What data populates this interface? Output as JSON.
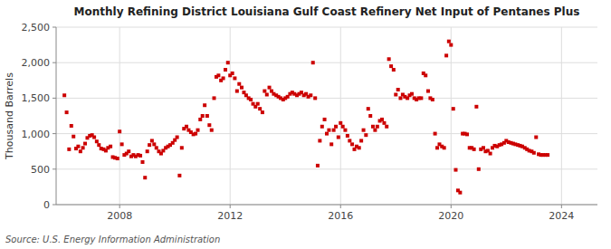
{
  "chart_data": {
    "type": "scatter",
    "title": "Monthly Refining District Louisiana Gulf Coast Refinery Net Input of Pentanes Plus",
    "ylabel": "Thousand Barrels",
    "source": "Source: U.S. Energy Information Administration",
    "color": "#cc0000",
    "marker": "square",
    "grid": true,
    "xlim": [
      2005.7,
      2025.3
    ],
    "xticks": [
      2008,
      2012,
      2016,
      2020,
      2024
    ],
    "ylim": [
      0,
      2500
    ],
    "yticks": [
      0,
      500,
      {
        "value": 1000,
        "label": "1,000"
      },
      {
        "value": 1500,
        "label": "1,500"
      },
      {
        "value": 2000,
        "label": "2,000"
      },
      {
        "value": 2500,
        "label": "2,500"
      }
    ],
    "x": [
      2006.0,
      2006.08,
      2006.17,
      2006.25,
      2006.33,
      2006.42,
      2006.5,
      2006.58,
      2006.67,
      2006.75,
      2006.83,
      2006.92,
      2007.0,
      2007.08,
      2007.17,
      2007.25,
      2007.33,
      2007.42,
      2007.5,
      2007.58,
      2007.67,
      2007.75,
      2007.83,
      2007.92,
      2008.0,
      2008.08,
      2008.17,
      2008.25,
      2008.33,
      2008.42,
      2008.5,
      2008.58,
      2008.67,
      2008.75,
      2008.83,
      2008.92,
      2009.0,
      2009.08,
      2009.17,
      2009.25,
      2009.33,
      2009.42,
      2009.5,
      2009.58,
      2009.67,
      2009.75,
      2009.83,
      2009.92,
      2010.0,
      2010.08,
      2010.17,
      2010.25,
      2010.33,
      2010.42,
      2010.5,
      2010.58,
      2010.67,
      2010.75,
      2010.83,
      2010.92,
      2011.0,
      2011.08,
      2011.17,
      2011.25,
      2011.33,
      2011.42,
      2011.5,
      2011.58,
      2011.67,
      2011.75,
      2011.83,
      2011.92,
      2012.0,
      2012.08,
      2012.17,
      2012.25,
      2012.33,
      2012.42,
      2012.5,
      2012.58,
      2012.67,
      2012.75,
      2012.83,
      2012.92,
      2013.0,
      2013.08,
      2013.17,
      2013.25,
      2013.33,
      2013.42,
      2013.5,
      2013.58,
      2013.67,
      2013.75,
      2013.83,
      2013.92,
      2014.0,
      2014.08,
      2014.17,
      2014.25,
      2014.33,
      2014.42,
      2014.5,
      2014.58,
      2014.67,
      2014.75,
      2014.83,
      2014.92,
      2015.0,
      2015.08,
      2015.17,
      2015.25,
      2015.33,
      2015.42,
      2015.5,
      2015.58,
      2015.67,
      2015.75,
      2015.83,
      2015.92,
      2016.0,
      2016.08,
      2016.17,
      2016.25,
      2016.33,
      2016.42,
      2016.5,
      2016.58,
      2016.67,
      2016.75,
      2016.83,
      2016.92,
      2017.0,
      2017.08,
      2017.17,
      2017.25,
      2017.33,
      2017.42,
      2017.5,
      2017.58,
      2017.67,
      2017.75,
      2017.83,
      2017.92,
      2018.0,
      2018.08,
      2018.17,
      2018.25,
      2018.33,
      2018.42,
      2018.5,
      2018.58,
      2018.67,
      2018.75,
      2018.83,
      2018.92,
      2019.0,
      2019.08,
      2019.17,
      2019.25,
      2019.33,
      2019.42,
      2019.5,
      2019.58,
      2019.67,
      2019.75,
      2019.83,
      2019.92,
      2020.0,
      2020.08,
      2020.17,
      2020.25,
      2020.33,
      2020.42,
      2020.5,
      2020.58,
      2020.67,
      2020.75,
      2020.83,
      2020.92,
      2021.0,
      2021.08,
      2021.17,
      2021.25,
      2021.33,
      2021.42,
      2021.5,
      2021.58,
      2021.67,
      2021.75,
      2021.83,
      2021.92,
      2022.0,
      2022.08,
      2022.17,
      2022.25,
      2022.33,
      2022.42,
      2022.5,
      2022.58,
      2022.67,
      2022.75,
      2022.83,
      2022.92,
      2023.0,
      2023.08,
      2023.17,
      2023.25,
      2023.33,
      2023.42,
      2023.5
    ],
    "values": [
      1540,
      1300,
      780,
      1110,
      960,
      790,
      820,
      750,
      800,
      860,
      940,
      970,
      980,
      950,
      890,
      840,
      790,
      780,
      760,
      800,
      820,
      670,
      660,
      650,
      1030,
      850,
      700,
      720,
      750,
      680,
      700,
      680,
      700,
      690,
      600,
      380,
      750,
      840,
      900,
      850,
      800,
      750,
      720,
      760,
      800,
      820,
      840,
      870,
      910,
      950,
      410,
      800,
      1070,
      1100,
      1050,
      1020,
      990,
      1000,
      1050,
      1200,
      1250,
      1400,
      1250,
      1120,
      1050,
      1500,
      1800,
      1820,
      1750,
      1780,
      1900,
      2000,
      1820,
      1850,
      1780,
      1600,
      1700,
      1650,
      1580,
      1540,
      1500,
      1480,
      1420,
      1380,
      1420,
      1350,
      1300,
      1600,
      1550,
      1650,
      1600,
      1560,
      1540,
      1520,
      1500,
      1480,
      1500,
      1520,
      1560,
      1580,
      1560,
      1540,
      1560,
      1580,
      1540,
      1560,
      1520,
      1540,
      2000,
      1500,
      550,
      900,
      1100,
      1200,
      1000,
      1050,
      850,
      1050,
      1100,
      950,
      1150,
      1100,
      1050,
      970,
      900,
      850,
      780,
      820,
      800,
      900,
      1050,
      980,
      1350,
      1250,
      1100,
      1050,
      1100,
      1180,
      1200,
      1150,
      1100,
      2050,
      1950,
      1900,
      1550,
      1620,
      1500,
      1550,
      1520,
      1500,
      1540,
      1560,
      1500,
      1480,
      1500,
      1500,
      1850,
      1820,
      1600,
      1500,
      1480,
      1000,
      800,
      850,
      820,
      800,
      2100,
      2300,
      2250,
      1350,
      490,
      200,
      170,
      1000,
      1000,
      990,
      800,
      800,
      780,
      1380,
      500,
      780,
      800,
      750,
      760,
      720,
      800,
      830,
      820,
      840,
      850,
      870,
      900,
      880,
      870,
      860,
      850,
      840,
      830,
      820,
      800,
      780,
      760,
      750,
      730,
      950,
      710,
      700,
      700,
      700,
      700
    ]
  }
}
